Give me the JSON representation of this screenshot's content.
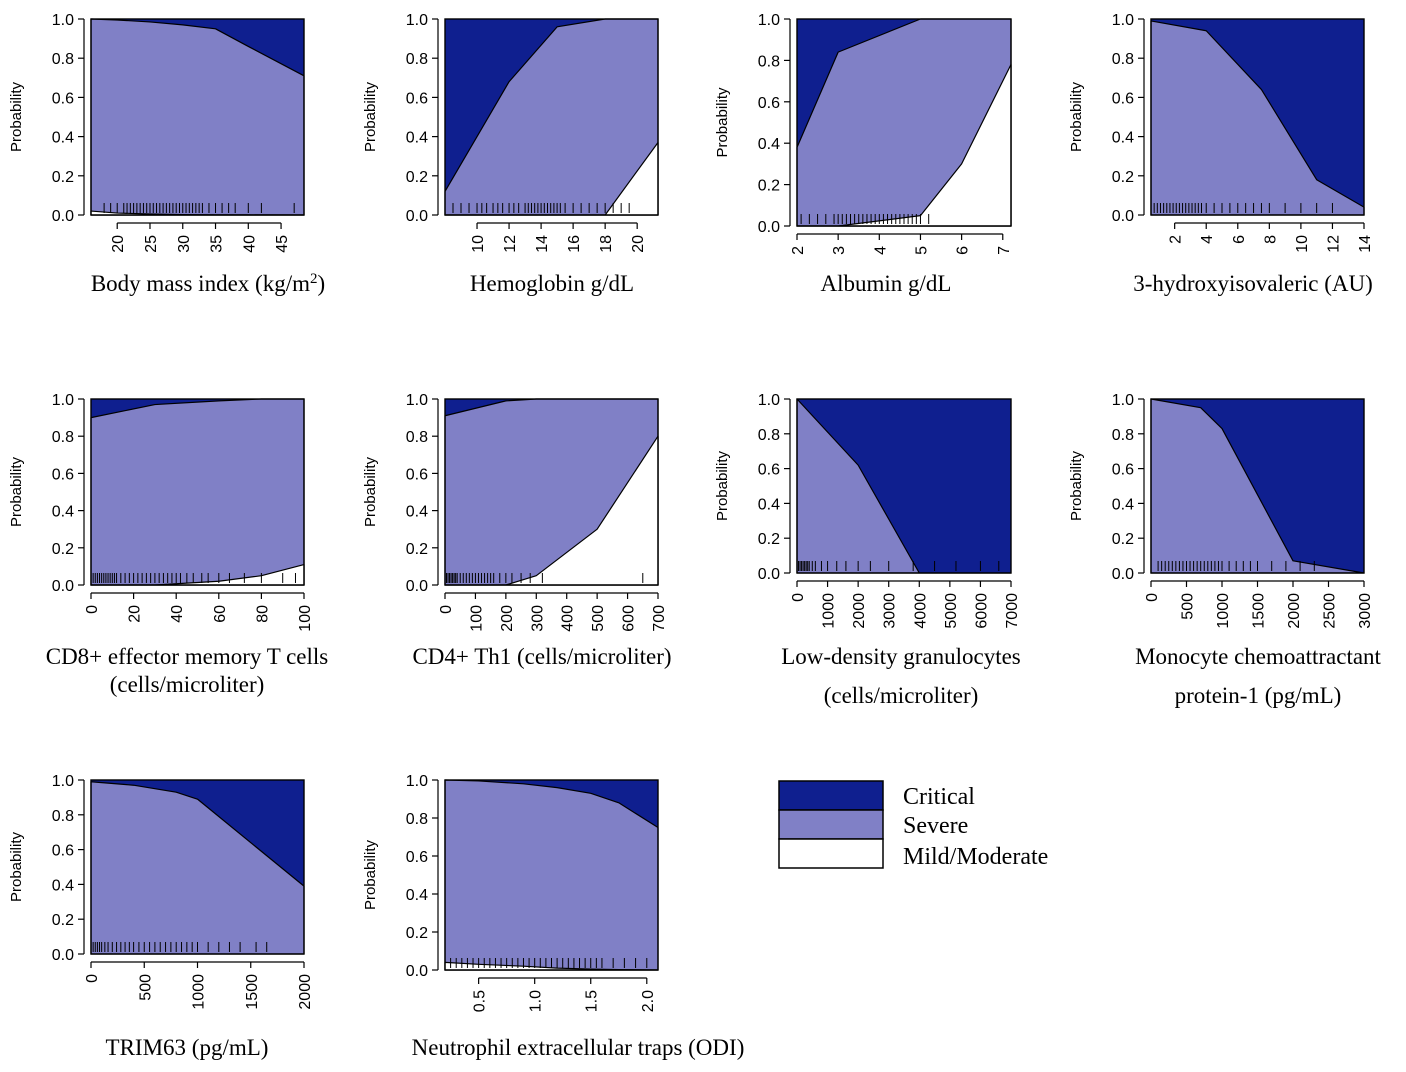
{
  "colors": {
    "critical": "#0f1f8f",
    "severe": "#8080c6",
    "mild": "#ffffff"
  },
  "legend": {
    "items": [
      {
        "key": "critical",
        "label": "Critical"
      },
      {
        "key": "severe",
        "label": "Severe"
      },
      {
        "key": "mild",
        "label": "Mild/Moderate"
      }
    ]
  },
  "chart_data": [
    {
      "type": "area",
      "stacked": true,
      "title": "",
      "xlabel": "Body mass index (kg/m",
      "xlabel_sup": "2",
      "xlabel_after": ")",
      "ylabel": "Probability",
      "xlim": [
        16,
        48.5
      ],
      "ylim": [
        0,
        1
      ],
      "xticks": [
        20,
        25,
        30,
        35,
        40,
        45
      ],
      "yticks": [
        0.0,
        0.2,
        0.4,
        0.6,
        0.8,
        1.0
      ],
      "ytick_labels": [
        "0.0",
        "0.2",
        "0.4",
        "0.6",
        "0.8",
        "1.0"
      ],
      "x": [
        16,
        20,
        25,
        30,
        35,
        40,
        48.5
      ],
      "mild": [
        0.02,
        0.01,
        0.005,
        0.002,
        0.001,
        0.0005,
        0.0
      ],
      "mild_severe": [
        1.0,
        0.995,
        0.985,
        0.97,
        0.95,
        0.86,
        0.71
      ],
      "rug": [
        18,
        19,
        20,
        21,
        21.5,
        22,
        22.5,
        23,
        23.5,
        24,
        24.5,
        25,
        25.5,
        26,
        26.5,
        27,
        27.5,
        28,
        28.5,
        29,
        29.5,
        30,
        30.5,
        31,
        31.5,
        32,
        32.5,
        33,
        34,
        35,
        36,
        37,
        38,
        40,
        42,
        47
      ]
    },
    {
      "type": "area",
      "stacked": true,
      "xlabel": "Hemoglobin g/dL",
      "ylabel": "Probability",
      "xlim": [
        8,
        21.3
      ],
      "ylim": [
        0,
        1
      ],
      "xticks": [
        10,
        12,
        14,
        16,
        18,
        20
      ],
      "yticks": [
        0.0,
        0.2,
        0.4,
        0.6,
        0.8,
        1.0
      ],
      "ytick_labels": [
        "0.0",
        "0.2",
        "0.4",
        "0.6",
        "0.8",
        "1.0"
      ],
      "x": [
        8,
        12,
        15,
        18,
        21.3
      ],
      "mild": [
        0.0,
        0.0,
        0.0,
        0.0,
        0.37
      ],
      "mild_severe": [
        0.12,
        0.68,
        0.96,
        1.0,
        1.0
      ],
      "rug": [
        8.5,
        9,
        9.5,
        10,
        10.3,
        10.6,
        11,
        11.3,
        11.6,
        12,
        12.3,
        12.6,
        13,
        13.2,
        13.4,
        13.6,
        13.8,
        14,
        14.2,
        14.4,
        14.6,
        14.8,
        15,
        15.2,
        15.5,
        16,
        16.5,
        17,
        17.5,
        18,
        18.5,
        19,
        19.5
      ]
    },
    {
      "type": "area",
      "stacked": true,
      "xlabel": "Albumin g/dL",
      "ylabel": "Probability",
      "xlim": [
        2,
        7.2
      ],
      "ylim": [
        0,
        1
      ],
      "xticks": [
        2,
        3,
        4,
        5,
        6,
        7
      ],
      "yticks": [
        0.0,
        0.2,
        0.4,
        0.6,
        0.8,
        1.0
      ],
      "ytick_labels": [
        "0.0",
        "0.2",
        "0.4",
        "0.6",
        "0.8",
        "1.0"
      ],
      "x": [
        2,
        3,
        5,
        6,
        7.2
      ],
      "mild": [
        0.0,
        0.0,
        0.05,
        0.3,
        0.78
      ],
      "mild_severe": [
        0.38,
        0.84,
        1.0,
        1.0,
        1.0
      ],
      "rug": [
        2.1,
        2.3,
        2.5,
        2.7,
        2.9,
        3.0,
        3.1,
        3.2,
        3.3,
        3.4,
        3.5,
        3.6,
        3.7,
        3.8,
        3.9,
        4.0,
        4.1,
        4.2,
        4.3,
        4.4,
        4.5,
        4.6,
        4.7,
        4.8,
        4.9,
        5.0,
        5.2
      ]
    },
    {
      "type": "area",
      "stacked": true,
      "xlabel": "3-hydroxyisovaleric (AU)",
      "ylabel": "Probability",
      "xlim": [
        0.5,
        14
      ],
      "ylim": [
        0,
        1
      ],
      "xticks": [
        2,
        4,
        6,
        8,
        10,
        12,
        14
      ],
      "yticks": [
        0.0,
        0.2,
        0.4,
        0.6,
        0.8,
        1.0
      ],
      "ytick_labels": [
        "0.0",
        "0.2",
        "0.4",
        "0.6",
        "0.8",
        "1.0"
      ],
      "x": [
        0.5,
        4,
        7.5,
        11,
        14
      ],
      "mild": [
        0,
        0,
        0,
        0,
        0
      ],
      "mild_severe": [
        0.99,
        0.94,
        0.64,
        0.18,
        0.04
      ],
      "rug": [
        0.7,
        0.9,
        1.1,
        1.3,
        1.5,
        1.7,
        1.9,
        2.1,
        2.3,
        2.5,
        2.7,
        2.9,
        3.1,
        3.3,
        3.5,
        3.7,
        4.0,
        4.5,
        5,
        5.5,
        6,
        6.5,
        7,
        7.5,
        8,
        9,
        10,
        11,
        12
      ]
    },
    {
      "type": "area",
      "stacked": true,
      "xlabel": "CD8+ effector memory T cells",
      "xlabel2": "(cells/microliter)",
      "ylabel": "Probability",
      "xlim": [
        0,
        100
      ],
      "ylim": [
        0,
        1
      ],
      "xticks": [
        0,
        20,
        40,
        60,
        80,
        100
      ],
      "yticks": [
        0.0,
        0.2,
        0.4,
        0.6,
        0.8,
        1.0
      ],
      "ytick_labels": [
        "0.0",
        "0.2",
        "0.4",
        "0.6",
        "0.8",
        "1.0"
      ],
      "x": [
        0,
        30,
        60,
        80,
        100
      ],
      "mild": [
        0.0,
        0.0,
        0.02,
        0.05,
        0.11
      ],
      "mild_severe": [
        0.9,
        0.97,
        0.99,
        1.0,
        1.0
      ],
      "rug": [
        1,
        2,
        3,
        4,
        5,
        6,
        7,
        8,
        9,
        10,
        11,
        12,
        14,
        16,
        18,
        20,
        22,
        24,
        26,
        28,
        30,
        32,
        34,
        36,
        38,
        40,
        42,
        45,
        48,
        52,
        55,
        60,
        65,
        72,
        80,
        90,
        96
      ]
    },
    {
      "type": "area",
      "stacked": true,
      "xlabel": "CD4+ Th1 (cells/microliter)",
      "ylabel": "Probability",
      "xlim": [
        0,
        700
      ],
      "ylim": [
        0,
        1
      ],
      "xticks": [
        0,
        100,
        200,
        300,
        400,
        500,
        600,
        700
      ],
      "yticks": [
        0.0,
        0.2,
        0.4,
        0.6,
        0.8,
        1.0
      ],
      "ytick_labels": [
        "0.0",
        "0.2",
        "0.4",
        "0.6",
        "0.8",
        "1.0"
      ],
      "x": [
        0,
        200,
        300,
        500,
        700
      ],
      "mild": [
        0.0,
        0.0,
        0.05,
        0.3,
        0.8
      ],
      "mild_severe": [
        0.91,
        0.99,
        1.0,
        1.0,
        1.0
      ],
      "rug": [
        5,
        10,
        15,
        20,
        25,
        30,
        35,
        40,
        50,
        60,
        70,
        80,
        90,
        100,
        110,
        120,
        130,
        140,
        150,
        160,
        180,
        200,
        220,
        250,
        280,
        320,
        650
      ]
    },
    {
      "type": "area",
      "stacked": true,
      "xlabel": "Low-density granulocytes",
      "xlabel2": "(cells/microliter)",
      "ylabel": "Probability",
      "xlim": [
        0,
        7000
      ],
      "ylim": [
        0,
        1
      ],
      "xticks": [
        0,
        1000,
        2000,
        3000,
        4000,
        5000,
        6000,
        7000
      ],
      "yticks": [
        0.0,
        0.2,
        0.4,
        0.6,
        0.8,
        1.0
      ],
      "ytick_labels": [
        "0.0",
        "0.2",
        "0.4",
        "0.6",
        "0.8",
        "1.0"
      ],
      "x": [
        0,
        2000,
        4000,
        7000
      ],
      "mild": [
        0,
        0,
        0,
        0
      ],
      "mild_severe": [
        1.0,
        0.62,
        0.0,
        0.0
      ],
      "rug": [
        50,
        100,
        150,
        200,
        250,
        300,
        350,
        400,
        500,
        600,
        800,
        1000,
        1300,
        1600,
        2000,
        2400,
        3000,
        3800,
        4500,
        5200,
        6000,
        6600
      ]
    },
    {
      "type": "area",
      "stacked": true,
      "xlabel": "Monocyte chemoattractant",
      "xlabel2": "protein-1 (pg/mL)",
      "ylabel": "Probability",
      "xlim": [
        0,
        3000
      ],
      "ylim": [
        0,
        1
      ],
      "xticks": [
        0,
        500,
        1000,
        1500,
        2000,
        2500,
        3000
      ],
      "yticks": [
        0.0,
        0.2,
        0.4,
        0.6,
        0.8,
        1.0
      ],
      "ytick_labels": [
        "0.0",
        "0.2",
        "0.4",
        "0.6",
        "0.8",
        "1.0"
      ],
      "x": [
        0,
        700,
        1000,
        2000,
        3000
      ],
      "mild": [
        0,
        0,
        0,
        0,
        0
      ],
      "mild_severe": [
        1.0,
        0.95,
        0.83,
        0.07,
        0.0
      ],
      "rug": [
        100,
        150,
        200,
        250,
        300,
        350,
        400,
        450,
        500,
        550,
        600,
        650,
        700,
        750,
        800,
        850,
        900,
        950,
        1000,
        1100,
        1200,
        1300,
        1400,
        1500,
        1700,
        1900,
        2100,
        2300
      ]
    },
    {
      "type": "area",
      "stacked": true,
      "xlabel": "TRIM63 (pg/mL)",
      "ylabel": "Probability",
      "xlim": [
        0,
        2000
      ],
      "ylim": [
        0,
        1
      ],
      "xticks": [
        0,
        500,
        1000,
        1500,
        2000
      ],
      "yticks": [
        0.0,
        0.2,
        0.4,
        0.6,
        0.8,
        1.0
      ],
      "ytick_labels": [
        "0.0",
        "0.2",
        "0.4",
        "0.6",
        "0.8",
        "1.0"
      ],
      "x": [
        0,
        400,
        800,
        1000,
        2000
      ],
      "mild": [
        0,
        0,
        0,
        0,
        0
      ],
      "mild_severe": [
        0.99,
        0.97,
        0.93,
        0.89,
        0.39
      ],
      "rug": [
        20,
        40,
        60,
        80,
        100,
        130,
        160,
        200,
        240,
        280,
        320,
        360,
        400,
        450,
        500,
        550,
        600,
        650,
        700,
        750,
        800,
        850,
        900,
        950,
        1000,
        1100,
        1200,
        1300,
        1400,
        1550,
        1650
      ]
    },
    {
      "type": "area",
      "stacked": true,
      "xlabel": "Neutrophil extracellular traps (ODI)",
      "ylabel": "Probability",
      "xlim": [
        0.2,
        2.1
      ],
      "ylim": [
        0,
        1
      ],
      "xticks": [
        0.5,
        1.0,
        1.5,
        2.0
      ],
      "xtick_labels": [
        "0.5",
        "1.0",
        "1.5",
        "2.0"
      ],
      "yticks": [
        0.0,
        0.2,
        0.4,
        0.6,
        0.8,
        1.0
      ],
      "ytick_labels": [
        "0.0",
        "0.2",
        "0.4",
        "0.6",
        "0.8",
        "1.0"
      ],
      "x": [
        0.2,
        0.5,
        0.9,
        1.2,
        1.5,
        1.75,
        2.1
      ],
      "mild": [
        0.04,
        0.03,
        0.02,
        0.01,
        0.005,
        0.002,
        0.0
      ],
      "mild_severe": [
        1.0,
        0.995,
        0.98,
        0.96,
        0.93,
        0.88,
        0.75
      ],
      "rug": [
        0.25,
        0.3,
        0.35,
        0.4,
        0.45,
        0.5,
        0.55,
        0.6,
        0.65,
        0.7,
        0.75,
        0.8,
        0.85,
        0.9,
        0.95,
        1.0,
        1.05,
        1.1,
        1.15,
        1.2,
        1.25,
        1.3,
        1.35,
        1.4,
        1.45,
        1.5,
        1.55,
        1.6,
        1.7,
        1.8,
        1.9,
        2.0
      ]
    }
  ]
}
